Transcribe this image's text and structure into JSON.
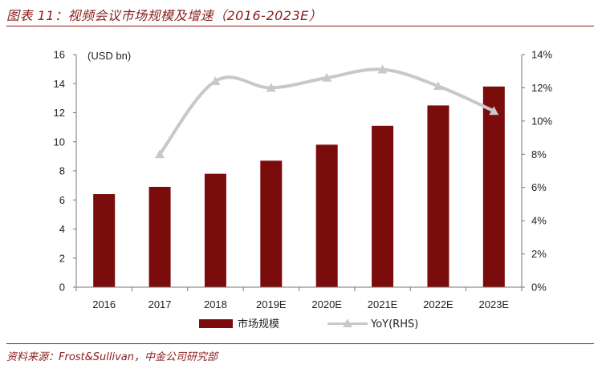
{
  "title": "图表 11：视频会议市场规模及增速（2016-2023E）",
  "source": "资料来源：Frost&Sullivan，中金公司研究部",
  "colors": {
    "bar": "#7b0c0c",
    "line": "#c8c8c8",
    "accent": "#8a1c1c"
  },
  "chart_data": {
    "type": "bar",
    "categories": [
      "2016",
      "2017",
      "2018",
      "2019E",
      "2020E",
      "2021E",
      "2022E",
      "2023E"
    ],
    "series": [
      {
        "name": "市场规模",
        "type": "bar",
        "axis": "left",
        "values": [
          6.4,
          6.9,
          7.8,
          8.7,
          9.8,
          11.1,
          12.5,
          13.8
        ]
      },
      {
        "name": "YoY(RHS)",
        "type": "line",
        "axis": "right",
        "values": [
          null,
          8.0,
          12.4,
          12.0,
          12.6,
          13.1,
          12.1,
          10.6
        ]
      }
    ],
    "ylabel": "(USD bn)",
    "ylim": [
      0,
      16
    ],
    "yticks": [
      "0",
      "2",
      "4",
      "6",
      "8",
      "10",
      "12",
      "14",
      "16"
    ],
    "y2lim": [
      0,
      14
    ],
    "y2ticks": [
      "0%",
      "2%",
      "4%",
      "6%",
      "8%",
      "10%",
      "12%",
      "14%"
    ],
    "legend": "bottom",
    "grid": false
  }
}
